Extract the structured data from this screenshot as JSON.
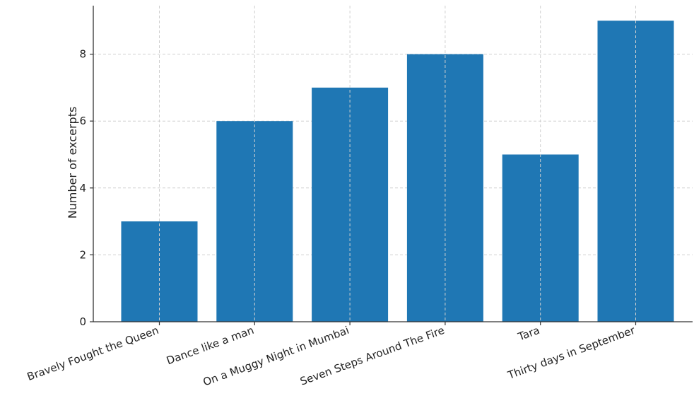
{
  "chart_data": {
    "type": "bar",
    "categories": [
      "Bravely Fought the Queen",
      "Dance like a man",
      "On a Muggy Night in Mumbai",
      "Seven Steps Around The Fire",
      "Tara",
      "Thirty days in September"
    ],
    "values": [
      3,
      6,
      7,
      8,
      5,
      9
    ],
    "title": "",
    "xlabel": "",
    "ylabel": "Number of excerpts",
    "ylim": [
      0,
      9.45
    ],
    "yticks": [
      0,
      2,
      4,
      6,
      8
    ],
    "grid": true,
    "bar_color": "#1f77b4"
  }
}
